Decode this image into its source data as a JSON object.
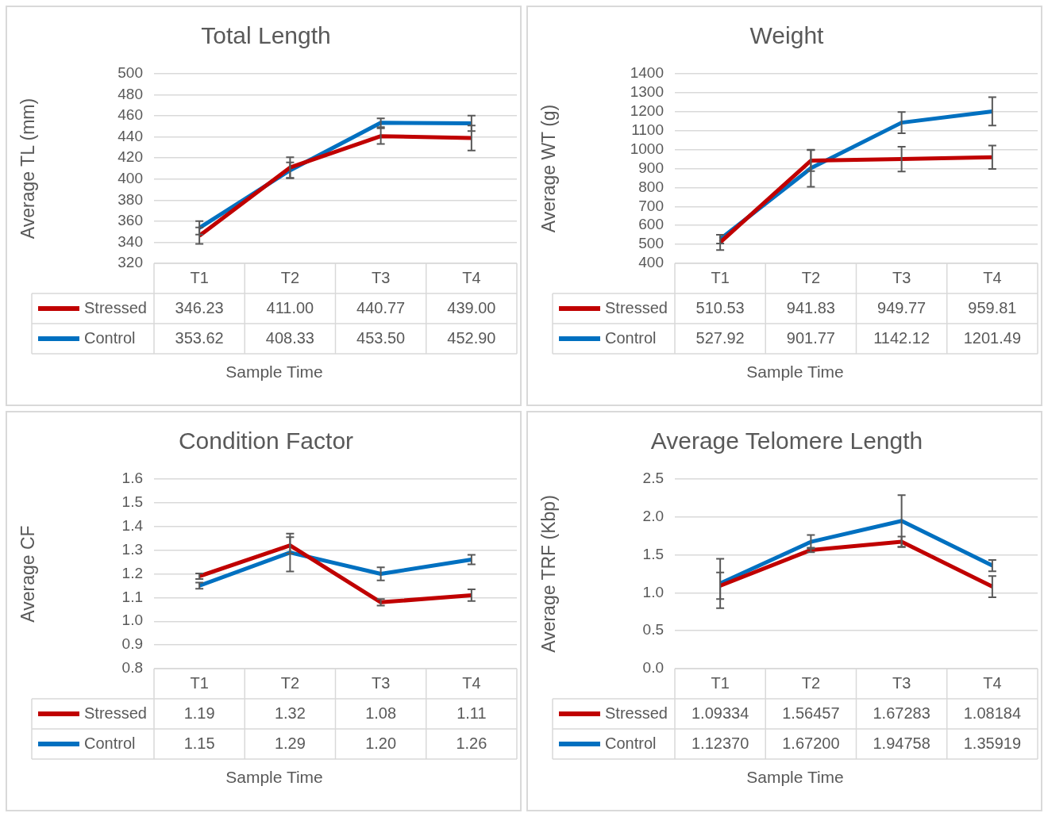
{
  "chart_data": [
    {
      "type": "line",
      "title": "Total Length",
      "xlabel": "Sample Time",
      "ylabel": "Average TL (mm)",
      "categories": [
        "T1",
        "T2",
        "T3",
        "T4"
      ],
      "ylim": [
        320,
        500
      ],
      "yticks": [
        320,
        340,
        360,
        380,
        400,
        420,
        440,
        460,
        480,
        500
      ],
      "grid": "y",
      "legend": "bottom",
      "series": [
        {
          "name": "Stressed",
          "color": "#c00000",
          "values": [
            346.23,
            411.0,
            440.77,
            439.0
          ],
          "value_labels": [
            "346.23",
            "411.00",
            "440.77",
            "439.00"
          ],
          "errors": [
            7.8,
            9.8,
            7.4,
            11.8
          ]
        },
        {
          "name": "Control",
          "color": "#0070c0",
          "values": [
            353.62,
            408.33,
            453.5,
            452.9
          ],
          "value_labels": [
            "353.62",
            "408.33",
            "453.50",
            "452.90"
          ],
          "errors": [
            6.4,
            7.5,
            4.2,
            7.4
          ]
        }
      ]
    },
    {
      "type": "line",
      "title": "Weight",
      "xlabel": "Sample Time",
      "ylabel": "Average WT (g)",
      "categories": [
        "T1",
        "T2",
        "T3",
        "T4"
      ],
      "ylim": [
        400,
        1400
      ],
      "yticks": [
        400,
        500,
        600,
        700,
        800,
        900,
        1000,
        1100,
        1200,
        1300,
        1400
      ],
      "grid": "y",
      "legend": "bottom",
      "series": [
        {
          "name": "Stressed",
          "color": "#c00000",
          "values": [
            510.53,
            941.83,
            949.77,
            959.81
          ],
          "value_labels": [
            "510.53",
            "941.83",
            "949.77",
            "959.81"
          ],
          "errors": [
            40,
            55,
            65,
            62
          ]
        },
        {
          "name": "Control",
          "color": "#0070c0",
          "values": [
            527.92,
            901.77,
            1142.12,
            1201.49
          ],
          "value_labels": [
            "527.92",
            "901.77",
            "1142.12",
            "1201.49"
          ],
          "errors": [
            23,
            98,
            56,
            75
          ]
        }
      ]
    },
    {
      "type": "line",
      "title": "Condition Factor",
      "xlabel": "Sample Time",
      "ylabel": "Average CF",
      "categories": [
        "T1",
        "T2",
        "T3",
        "T4"
      ],
      "ylim": [
        0.8,
        1.6
      ],
      "yticks": [
        {
          "value": 0.8,
          "label": "0.8"
        },
        {
          "value": 0.9,
          "label": "0.9"
        },
        {
          "value": 1.0,
          "label": "1.0"
        },
        {
          "value": 1.1,
          "label": "1.1"
        },
        {
          "value": 1.2,
          "label": "1.2"
        },
        {
          "value": 1.3,
          "label": "1.3"
        },
        {
          "value": 1.4,
          "label": "1.4"
        },
        {
          "value": 1.5,
          "label": "1.5"
        },
        {
          "value": 1.6,
          "label": "1.6"
        }
      ],
      "grid": "y",
      "legend": "bottom",
      "series": [
        {
          "name": "Stressed",
          "color": "#c00000",
          "values": [
            1.19,
            1.32,
            1.08,
            1.11
          ],
          "value_labels": [
            "1.19",
            "1.32",
            "1.08",
            "1.11"
          ],
          "errors": [
            0.012,
            0.035,
            0.014,
            0.025
          ]
        },
        {
          "name": "Control",
          "color": "#0070c0",
          "values": [
            1.15,
            1.29,
            1.2,
            1.26
          ],
          "value_labels": [
            "1.15",
            "1.29",
            "1.20",
            "1.26"
          ],
          "errors": [
            0.013,
            0.08,
            0.028,
            0.02
          ]
        }
      ]
    },
    {
      "type": "line",
      "title": "Average Telomere Length",
      "xlabel": "Sample Time",
      "ylabel": "Average TRF (Kbp)",
      "categories": [
        "T1",
        "T2",
        "T3",
        "T4"
      ],
      "ylim": [
        0,
        2.5
      ],
      "yticks": [
        {
          "value": 0,
          "label": "0.0"
        },
        {
          "value": 0.5,
          "label": "0.5"
        },
        {
          "value": 1,
          "label": "1.0"
        },
        {
          "value": 1.5,
          "label": "1.5"
        },
        {
          "value": 2,
          "label": "2.0"
        },
        {
          "value": 2.5,
          "label": "2.5"
        }
      ],
      "grid": "y",
      "legend": "bottom",
      "series": [
        {
          "name": "Stressed",
          "color": "#c00000",
          "values": [
            1.09334,
            1.56457,
            1.67283,
            1.08184
          ],
          "value_labels": [
            "1.09334",
            "1.56457",
            "1.67283",
            "1.08184"
          ],
          "errors": [
            0.175,
            0.03,
            0.07,
            0.14
          ]
        },
        {
          "name": "Control",
          "color": "#0070c0",
          "values": [
            1.1237,
            1.672,
            1.94758,
            1.35919
          ],
          "value_labels": [
            "1.12370",
            "1.67200",
            "1.94758",
            "1.35919"
          ],
          "errors": [
            0.325,
            0.09,
            0.34,
            0.075
          ]
        }
      ]
    }
  ]
}
